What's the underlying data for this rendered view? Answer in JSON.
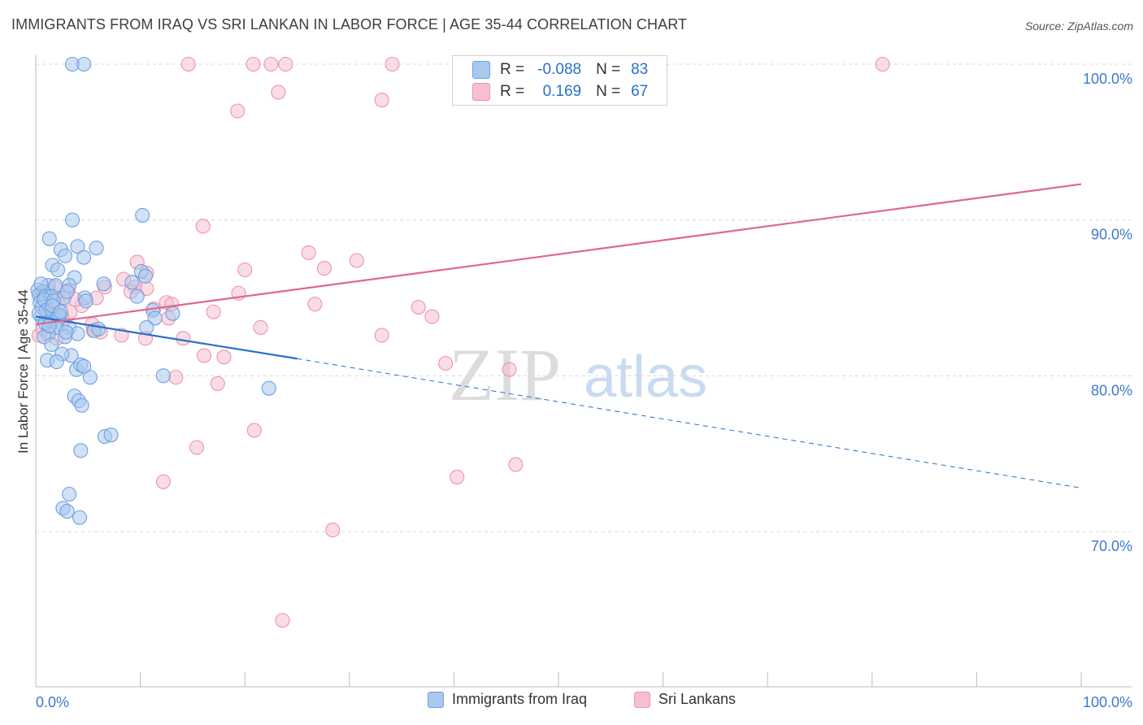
{
  "title": "IMMIGRANTS FROM IRAQ VS SRI LANKAN IN LABOR FORCE | AGE 35-44 CORRELATION CHART",
  "source": "Source: ZipAtlas.com",
  "watermark": {
    "zip": "ZIP",
    "atlas": "atlas"
  },
  "stats": [
    {
      "r_label": "R =",
      "r_value": "-0.088",
      "n_label": "N =",
      "n_value": "83",
      "color": "#a9c8ef",
      "border": "#6ea0e0"
    },
    {
      "r_label": "R =",
      "r_value": "0.169",
      "n_label": "N =",
      "n_value": "67",
      "color": "#f6bfcf",
      "border": "#ec93ae"
    }
  ],
  "legend": [
    {
      "label": "Immigrants from Iraq",
      "color": "#a9c8ef",
      "border": "#6ea0e0"
    },
    {
      "label": "Sri Lankans",
      "color": "#f6bfcf",
      "border": "#ec93ae"
    }
  ],
  "chart_data": {
    "type": "scatter",
    "title": "IMMIGRANTS FROM IRAQ VS SRI LANKAN IN LABOR FORCE | AGE 35-44 CORRELATION CHART",
    "xlabel": "",
    "ylabel": "In Labor Force | Age 35-44",
    "xlim": [
      0,
      100
    ],
    "ylim": [
      60,
      100
    ],
    "x_tick_labels": [
      "0.0%",
      "100.0%"
    ],
    "y_ticks": [
      {
        "value": 100,
        "label": "100.0%"
      },
      {
        "value": 90,
        "label": "90.0%"
      },
      {
        "value": 80,
        "label": "80.0%"
      },
      {
        "value": 70,
        "label": "70.0%"
      }
    ],
    "series": [
      {
        "name": "Immigrants from Iraq",
        "color": "#a9c8ef",
        "stroke": "#6ea0e0",
        "trend": {
          "x0": 0,
          "y0": 83.8,
          "x1": 25,
          "y1": 81.1,
          "dash_to_x": 100,
          "dash_to_y": 72.8,
          "color": "#2a6fc9"
        },
        "points": [
          [
            3.5,
            100
          ],
          [
            4.6,
            100
          ],
          [
            10.2,
            90.3
          ],
          [
            3.5,
            90.0
          ],
          [
            1.3,
            88.8
          ],
          [
            2.4,
            88.1
          ],
          [
            4.0,
            88.3
          ],
          [
            5.8,
            88.2
          ],
          [
            2.8,
            87.7
          ],
          [
            4.6,
            87.6
          ],
          [
            1.6,
            87.1
          ],
          [
            2.1,
            86.8
          ],
          [
            10.1,
            86.7
          ],
          [
            10.5,
            86.4
          ],
          [
            3.7,
            86.3
          ],
          [
            6.5,
            85.9
          ],
          [
            9.2,
            86.0
          ],
          [
            1.2,
            85.8
          ],
          [
            1.9,
            85.8
          ],
          [
            3.2,
            85.8
          ],
          [
            0.2,
            85.5
          ],
          [
            0.7,
            85.4
          ],
          [
            0.3,
            85.2
          ],
          [
            0.9,
            85.1
          ],
          [
            1.5,
            85.1
          ],
          [
            2.7,
            85.0
          ],
          [
            4.7,
            85.0
          ],
          [
            0.4,
            84.7
          ],
          [
            0.6,
            84.4
          ],
          [
            1.8,
            84.0
          ],
          [
            2.3,
            83.9
          ],
          [
            0.5,
            83.8
          ],
          [
            1.1,
            83.8
          ],
          [
            1.4,
            83.5
          ],
          [
            2.0,
            83.6
          ],
          [
            11.2,
            84.2
          ],
          [
            13.1,
            84.0
          ],
          [
            11.4,
            83.7
          ],
          [
            2.5,
            83.3
          ],
          [
            1.9,
            83.1
          ],
          [
            3.2,
            83.1
          ],
          [
            10.6,
            83.1
          ],
          [
            1.2,
            82.7
          ],
          [
            4.0,
            82.7
          ],
          [
            2.8,
            82.5
          ],
          [
            5.6,
            82.9
          ],
          [
            0.8,
            82.5
          ],
          [
            1.5,
            82.0
          ],
          [
            3.4,
            81.3
          ],
          [
            2.5,
            81.4
          ],
          [
            1.1,
            81.0
          ],
          [
            2.0,
            80.9
          ],
          [
            3.9,
            80.4
          ],
          [
            4.3,
            80.7
          ],
          [
            4.6,
            80.6
          ],
          [
            5.2,
            79.9
          ],
          [
            12.2,
            80.0
          ],
          [
            22.3,
            79.2
          ],
          [
            3.7,
            78.7
          ],
          [
            4.1,
            78.4
          ],
          [
            4.4,
            78.1
          ],
          [
            6.6,
            76.1
          ],
          [
            7.2,
            76.2
          ],
          [
            4.3,
            75.2
          ],
          [
            3.2,
            72.4
          ],
          [
            2.6,
            71.5
          ],
          [
            3.0,
            71.3
          ],
          [
            4.2,
            70.9
          ],
          [
            0.8,
            84.9
          ],
          [
            1.0,
            84.2
          ],
          [
            1.7,
            84.8
          ],
          [
            2.2,
            83.9
          ],
          [
            0.3,
            84.0
          ],
          [
            0.9,
            83.4
          ],
          [
            1.6,
            84.5
          ],
          [
            3.0,
            85.4
          ],
          [
            2.4,
            84.1
          ],
          [
            0.5,
            85.9
          ],
          [
            1.3,
            83.2
          ],
          [
            2.9,
            82.8
          ],
          [
            4.8,
            84.8
          ],
          [
            6.0,
            83.0
          ],
          [
            9.7,
            85.1
          ]
        ]
      },
      {
        "name": "Sri Lankans",
        "color": "#f6bfcf",
        "stroke": "#ec93ae",
        "trend": {
          "x0": 0,
          "y0": 83.3,
          "x1": 100,
          "y1": 92.3,
          "color": "#e0668f"
        },
        "points": [
          [
            14.6,
            100
          ],
          [
            20.8,
            100
          ],
          [
            22.5,
            100
          ],
          [
            23.9,
            100
          ],
          [
            34.1,
            100
          ],
          [
            81.0,
            100
          ],
          [
            23.2,
            98.2
          ],
          [
            33.1,
            97.7
          ],
          [
            19.3,
            97.0
          ],
          [
            16.0,
            89.6
          ],
          [
            26.1,
            87.9
          ],
          [
            30.7,
            87.4
          ],
          [
            9.7,
            87.3
          ],
          [
            27.6,
            86.9
          ],
          [
            20.0,
            86.8
          ],
          [
            10.6,
            86.6
          ],
          [
            8.4,
            86.2
          ],
          [
            6.6,
            85.7
          ],
          [
            9.5,
            85.7
          ],
          [
            10.6,
            85.6
          ],
          [
            3.1,
            85.5
          ],
          [
            9.1,
            85.4
          ],
          [
            19.4,
            85.3
          ],
          [
            2.7,
            85.0
          ],
          [
            5.8,
            85.0
          ],
          [
            12.5,
            84.7
          ],
          [
            13.0,
            84.6
          ],
          [
            26.7,
            84.6
          ],
          [
            36.6,
            84.4
          ],
          [
            11.3,
            84.3
          ],
          [
            17.0,
            84.1
          ],
          [
            3.3,
            84.1
          ],
          [
            37.9,
            83.8
          ],
          [
            12.7,
            83.7
          ],
          [
            5.4,
            83.3
          ],
          [
            21.5,
            83.1
          ],
          [
            6.2,
            82.8
          ],
          [
            8.2,
            82.6
          ],
          [
            33.1,
            82.6
          ],
          [
            14.1,
            82.4
          ],
          [
            10.5,
            82.4
          ],
          [
            16.1,
            81.3
          ],
          [
            18.0,
            81.2
          ],
          [
            39.2,
            80.8
          ],
          [
            45.3,
            80.4
          ],
          [
            13.4,
            79.9
          ],
          [
            17.4,
            79.5
          ],
          [
            20.9,
            76.5
          ],
          [
            15.4,
            75.4
          ],
          [
            45.9,
            74.3
          ],
          [
            40.3,
            73.5
          ],
          [
            12.2,
            73.2
          ],
          [
            28.4,
            70.1
          ],
          [
            23.6,
            64.3
          ],
          [
            0.5,
            85.2
          ],
          [
            1.0,
            84.0
          ],
          [
            1.4,
            83.6
          ],
          [
            2.2,
            84.6
          ],
          [
            0.3,
            82.6
          ],
          [
            1.8,
            85.7
          ],
          [
            2.5,
            83.8
          ],
          [
            4.4,
            84.5
          ],
          [
            0.7,
            83.0
          ],
          [
            3.8,
            84.9
          ],
          [
            5.5,
            82.9
          ],
          [
            2.0,
            82.4
          ],
          [
            1.2,
            85.4
          ]
        ]
      }
    ]
  }
}
